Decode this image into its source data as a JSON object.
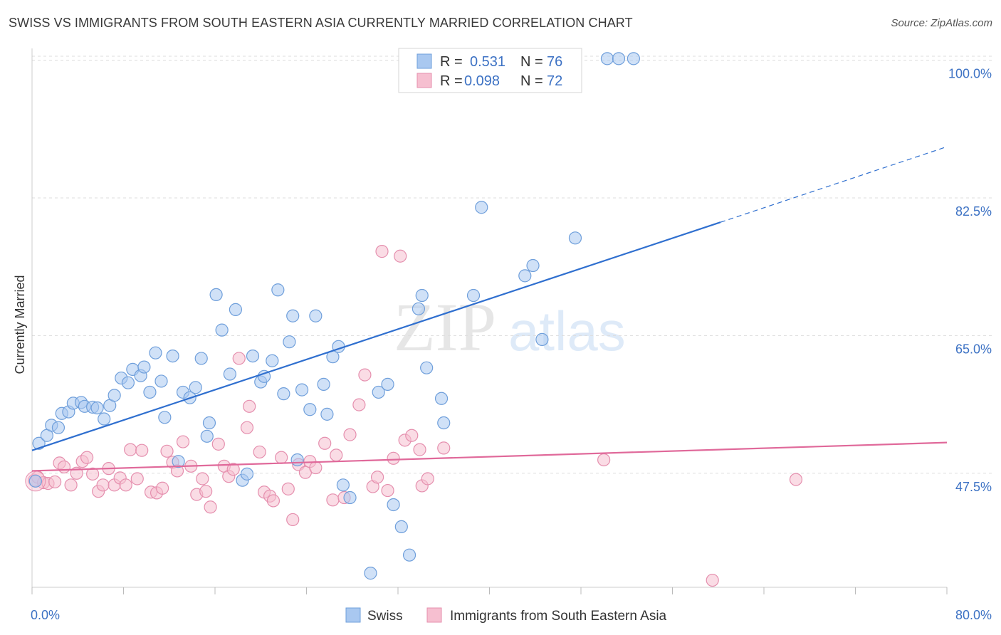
{
  "title": "SWISS VS IMMIGRANTS FROM SOUTH EASTERN ASIA CURRENTLY MARRIED CORRELATION CHART",
  "source": "Source: ZipAtlas.com",
  "watermark": {
    "zip": "ZIP",
    "atlas": "atlas"
  },
  "colors": {
    "swiss_fill": "#a9c8f0",
    "swiss_stroke": "#6f9fdb",
    "swiss_line": "#2f6fcf",
    "sea_fill": "#f6bfd0",
    "sea_stroke": "#e58fae",
    "sea_line": "#e0699a",
    "tick_label": "#3d72c4",
    "grid": "#dddddd"
  },
  "legend": {
    "rows": [
      {
        "r_label": "R =",
        "r_value": "0.531",
        "n_label": "N =",
        "n_value": "76"
      },
      {
        "r_label": "R =",
        "r_value": "0.098",
        "n_label": "N =",
        "n_value": "72"
      }
    ]
  },
  "chart_data": {
    "type": "scatter",
    "title": "SWISS VS IMMIGRANTS FROM SOUTH EASTERN ASIA CURRENTLY MARRIED CORRELATION CHART",
    "xlabel": "",
    "ylabel": "Currently Married",
    "xlim": [
      0,
      80
    ],
    "ylim": [
      33,
      101.5
    ],
    "x_tick_labels": [
      "0.0%",
      "80.0%"
    ],
    "y_ticks": [
      47.5,
      65.0,
      82.5,
      100.0
    ],
    "y_tick_labels": [
      "47.5%",
      "65.0%",
      "82.5%",
      "100.0%"
    ],
    "grid": true,
    "legend_position": "top-center",
    "series": [
      {
        "name": "Swiss",
        "r": 0.531,
        "n": 76,
        "trend": {
          "x0": 0,
          "y0": 50.4,
          "x1": 60.2,
          "y1": 79.4,
          "dash_to_x": 80,
          "dash_to_y": 89.0
        },
        "points": [
          [
            0.3,
            46.5
          ],
          [
            0.6,
            51.3
          ],
          [
            1.3,
            52.3
          ],
          [
            1.7,
            53.6
          ],
          [
            2.3,
            53.3
          ],
          [
            2.6,
            55.1
          ],
          [
            3.2,
            55.3
          ],
          [
            3.6,
            56.4
          ],
          [
            4.3,
            56.5
          ],
          [
            4.6,
            56.0
          ],
          [
            5.3,
            55.9
          ],
          [
            5.7,
            55.8
          ],
          [
            6.3,
            54.4
          ],
          [
            6.8,
            56.1
          ],
          [
            7.2,
            57.4
          ],
          [
            7.8,
            59.6
          ],
          [
            8.4,
            59.0
          ],
          [
            8.8,
            60.7
          ],
          [
            9.5,
            59.9
          ],
          [
            9.8,
            61.0
          ],
          [
            10.3,
            57.8
          ],
          [
            10.8,
            62.8
          ],
          [
            11.3,
            59.2
          ],
          [
            11.6,
            54.6
          ],
          [
            12.3,
            62.4
          ],
          [
            12.8,
            49.0
          ],
          [
            13.2,
            57.8
          ],
          [
            13.8,
            57.1
          ],
          [
            14.3,
            58.4
          ],
          [
            14.8,
            62.1
          ],
          [
            15.3,
            52.2
          ],
          [
            15.5,
            53.9
          ],
          [
            16.1,
            70.2
          ],
          [
            16.6,
            65.7
          ],
          [
            17.3,
            60.1
          ],
          [
            17.8,
            68.3
          ],
          [
            18.4,
            46.6
          ],
          [
            18.8,
            47.4
          ],
          [
            19.3,
            62.4
          ],
          [
            20.0,
            59.1
          ],
          [
            20.3,
            59.8
          ],
          [
            21.0,
            61.8
          ],
          [
            21.5,
            70.8
          ],
          [
            22.0,
            57.6
          ],
          [
            22.5,
            64.2
          ],
          [
            22.8,
            67.5
          ],
          [
            23.2,
            49.2
          ],
          [
            23.6,
            58.1
          ],
          [
            24.3,
            55.6
          ],
          [
            24.8,
            67.5
          ],
          [
            25.5,
            58.8
          ],
          [
            25.8,
            55.0
          ],
          [
            26.3,
            62.3
          ],
          [
            26.8,
            63.6
          ],
          [
            27.2,
            46.0
          ],
          [
            27.8,
            44.4
          ],
          [
            29.6,
            34.8
          ],
          [
            30.3,
            57.8
          ],
          [
            31.1,
            58.8
          ],
          [
            31.6,
            43.5
          ],
          [
            32.3,
            40.7
          ],
          [
            33.0,
            37.1
          ],
          [
            33.8,
            68.4
          ],
          [
            34.1,
            70.1
          ],
          [
            34.5,
            60.9
          ],
          [
            35.8,
            57.0
          ],
          [
            36.0,
            53.9
          ],
          [
            38.6,
            70.1
          ],
          [
            39.3,
            81.3
          ],
          [
            43.1,
            72.6
          ],
          [
            43.8,
            73.9
          ],
          [
            44.6,
            64.5
          ],
          [
            47.5,
            77.4
          ],
          [
            50.3,
            100.2
          ],
          [
            51.3,
            100.2
          ],
          [
            52.6,
            100.2
          ]
        ]
      },
      {
        "name": "Immigrants from South Eastern Asia",
        "r": 0.098,
        "n": 72,
        "trend": {
          "x0": 0,
          "y0": 47.8,
          "x1": 80,
          "y1": 51.4
        },
        "points": [
          [
            0.2,
            46.6
          ],
          [
            0.5,
            47.0
          ],
          [
            1.0,
            46.3
          ],
          [
            1.4,
            46.2
          ],
          [
            2.0,
            46.4
          ],
          [
            2.4,
            48.8
          ],
          [
            2.8,
            48.3
          ],
          [
            3.4,
            46.0
          ],
          [
            3.9,
            47.5
          ],
          [
            4.4,
            49.0
          ],
          [
            4.8,
            49.5
          ],
          [
            5.3,
            47.4
          ],
          [
            5.8,
            45.2
          ],
          [
            6.2,
            46.0
          ],
          [
            6.7,
            48.1
          ],
          [
            7.2,
            46.0
          ],
          [
            7.7,
            46.9
          ],
          [
            8.2,
            46.0
          ],
          [
            8.6,
            50.5
          ],
          [
            9.2,
            46.8
          ],
          [
            9.6,
            50.4
          ],
          [
            10.4,
            45.1
          ],
          [
            10.9,
            45.0
          ],
          [
            11.4,
            45.6
          ],
          [
            11.8,
            50.3
          ],
          [
            12.3,
            48.9
          ],
          [
            12.7,
            47.8
          ],
          [
            13.2,
            51.5
          ],
          [
            13.9,
            48.4
          ],
          [
            14.4,
            44.8
          ],
          [
            14.9,
            46.8
          ],
          [
            15.2,
            45.2
          ],
          [
            15.6,
            43.2
          ],
          [
            16.3,
            51.2
          ],
          [
            16.8,
            48.4
          ],
          [
            17.2,
            47.1
          ],
          [
            17.6,
            48.0
          ],
          [
            18.1,
            62.1
          ],
          [
            18.8,
            53.3
          ],
          [
            19.0,
            56.0
          ],
          [
            19.9,
            50.2
          ],
          [
            20.3,
            45.1
          ],
          [
            20.8,
            44.6
          ],
          [
            21.1,
            44.0
          ],
          [
            21.8,
            49.5
          ],
          [
            22.4,
            45.5
          ],
          [
            22.8,
            41.6
          ],
          [
            23.3,
            48.6
          ],
          [
            23.9,
            47.6
          ],
          [
            24.3,
            49.0
          ],
          [
            24.8,
            48.2
          ],
          [
            25.6,
            51.3
          ],
          [
            26.3,
            44.1
          ],
          [
            26.6,
            49.8
          ],
          [
            27.3,
            44.4
          ],
          [
            27.8,
            52.4
          ],
          [
            28.6,
            56.2
          ],
          [
            29.1,
            60.0
          ],
          [
            29.8,
            45.8
          ],
          [
            30.2,
            47.0
          ],
          [
            30.6,
            75.7
          ],
          [
            31.1,
            45.3
          ],
          [
            31.6,
            49.4
          ],
          [
            32.2,
            75.1
          ],
          [
            32.6,
            51.7
          ],
          [
            33.2,
            52.3
          ],
          [
            33.9,
            50.5
          ],
          [
            34.1,
            45.9
          ],
          [
            34.6,
            46.8
          ],
          [
            36.0,
            50.7
          ],
          [
            50.0,
            49.2
          ],
          [
            66.8,
            46.7
          ],
          [
            59.5,
            33.9
          ]
        ]
      }
    ]
  },
  "bottom_legend": {
    "items": [
      {
        "label": "Swiss"
      },
      {
        "label": "Immigrants from South Eastern Asia"
      }
    ]
  }
}
